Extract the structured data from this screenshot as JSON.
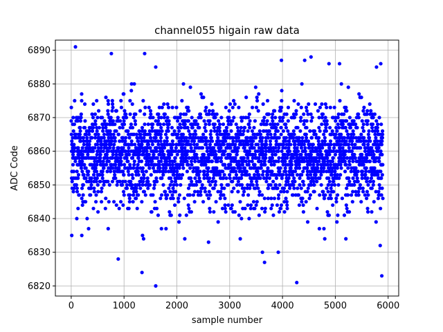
{
  "chart_data": {
    "type": "scatter",
    "title": "channel055 higain raw data",
    "xlabel": "sample number",
    "ylabel": "ADC Code",
    "xlim": [
      -300,
      6200
    ],
    "ylim": [
      6817,
      6893
    ],
    "xticks": [
      0,
      1000,
      2000,
      3000,
      4000,
      5000,
      6000
    ],
    "yticks": [
      6820,
      6830,
      6840,
      6850,
      6860,
      6870,
      6880,
      6890
    ],
    "grid": true,
    "legend": "none",
    "marker_color": "#0000ff",
    "n_points": 5900,
    "baseline_mean": 6859,
    "typical_band": [
      6840,
      6880
    ],
    "outliers": [
      {
        "x": 80,
        "y": 6891
      },
      {
        "x": 760,
        "y": 6889
      },
      {
        "x": 1390,
        "y": 6889
      },
      {
        "x": 890,
        "y": 6828
      },
      {
        "x": 1340,
        "y": 6824
      },
      {
        "x": 1600,
        "y": 6820
      },
      {
        "x": 4270,
        "y": 6821
      },
      {
        "x": 3660,
        "y": 6827
      },
      {
        "x": 3620,
        "y": 6830
      },
      {
        "x": 3920,
        "y": 6830
      },
      {
        "x": 5850,
        "y": 6832
      },
      {
        "x": 5880,
        "y": 6823
      },
      {
        "x": 4540,
        "y": 6888
      },
      {
        "x": 4420,
        "y": 6887
      },
      {
        "x": 3980,
        "y": 6887
      },
      {
        "x": 4880,
        "y": 6886
      },
      {
        "x": 5860,
        "y": 6886
      },
      {
        "x": 5780,
        "y": 6885
      },
      {
        "x": 5080,
        "y": 6886
      },
      {
        "x": 1600,
        "y": 6885
      },
      {
        "x": 1370,
        "y": 6834
      },
      {
        "x": 1350,
        "y": 6835
      },
      {
        "x": 200,
        "y": 6835
      },
      {
        "x": 10,
        "y": 6835
      },
      {
        "x": 700,
        "y": 6837
      },
      {
        "x": 2150,
        "y": 6834
      },
      {
        "x": 2600,
        "y": 6833
      },
      {
        "x": 3200,
        "y": 6834
      },
      {
        "x": 4800,
        "y": 6834
      },
      {
        "x": 5200,
        "y": 6834
      }
    ]
  }
}
